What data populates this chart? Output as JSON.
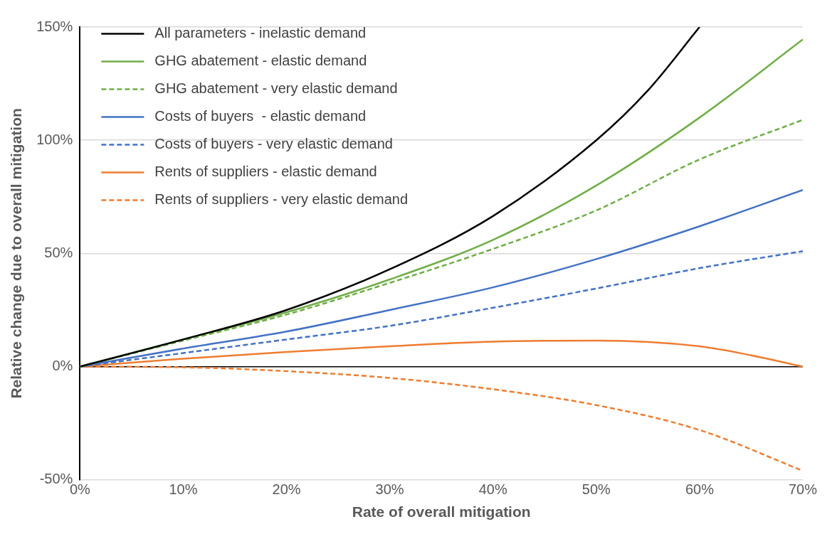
{
  "chart_data": {
    "type": "line",
    "xlabel": "Rate of overall mitigation",
    "ylabel": "Relative change due to overall mitigation",
    "xlim": [
      0,
      70
    ],
    "ylim": [
      -50,
      150
    ],
    "xticks": [
      {
        "value": 0,
        "label": "0%"
      },
      {
        "value": 10,
        "label": "10%"
      },
      {
        "value": 20,
        "label": "20%"
      },
      {
        "value": 30,
        "label": "30%"
      },
      {
        "value": 40,
        "label": "40%"
      },
      {
        "value": 50,
        "label": "50%"
      },
      {
        "value": 60,
        "label": "60%"
      },
      {
        "value": 70,
        "label": "70%"
      }
    ],
    "yticks": [
      {
        "value": -50,
        "label": "-50%"
      },
      {
        "value": 0,
        "label": "0%"
      },
      {
        "value": 50,
        "label": "50%"
      },
      {
        "value": 100,
        "label": "100%"
      },
      {
        "value": 150,
        "label": "150%"
      }
    ],
    "grid": "y",
    "legend": "top left",
    "series": [
      {
        "name": "All parameters - inelastic demand",
        "color": "#000000",
        "line_style": "solid",
        "x": [
          0,
          10,
          20,
          30,
          40,
          50,
          55,
          60
        ],
        "values": [
          0,
          12,
          25,
          43,
          66.5,
          100,
          122,
          150
        ]
      },
      {
        "name": "GHG abatement - elastic demand",
        "color": "#70ad47",
        "line_style": "solid",
        "x": [
          0,
          10,
          20,
          30,
          40,
          50,
          60,
          70
        ],
        "values": [
          0,
          12,
          24,
          38.5,
          56,
          80,
          110,
          144.5
        ]
      },
      {
        "name": "GHG abatement - very elastic demand",
        "color": "#70ad47",
        "line_style": "dashed",
        "x": [
          0,
          10,
          20,
          30,
          40,
          50,
          60,
          70
        ],
        "values": [
          0,
          11.5,
          23,
          37,
          52,
          69,
          91.5,
          109
        ]
      },
      {
        "name": "Costs of buyers  - elastic demand",
        "color": "#4472c4",
        "line_style": "solid",
        "x": [
          0,
          10,
          20,
          30,
          40,
          50,
          60,
          70
        ],
        "values": [
          0,
          8,
          15.5,
          25,
          35,
          47.5,
          62,
          78
        ]
      },
      {
        "name": "Costs of buyers - very elastic demand",
        "color": "#4472c4",
        "line_style": "dashed",
        "x": [
          0,
          10,
          20,
          30,
          40,
          50,
          60,
          70
        ],
        "values": [
          0,
          6,
          12,
          18,
          26,
          34.5,
          43.5,
          51
        ]
      },
      {
        "name": "Rents of suppliers - elastic demand",
        "color": "#ed7d31",
        "line_style": "solid",
        "x": [
          0,
          10,
          20,
          30,
          40,
          50,
          60,
          65,
          70
        ],
        "values": [
          0,
          3.5,
          6.5,
          9,
          11,
          11.5,
          9,
          5,
          0
        ]
      },
      {
        "name": "Rents of suppliers - very elastic demand",
        "color": "#ed7d31",
        "line_style": "dashed",
        "x": [
          0,
          10,
          20,
          30,
          40,
          50,
          60,
          70
        ],
        "values": [
          0,
          -0.3,
          -2,
          -5,
          -10,
          -17,
          -28,
          -46
        ]
      }
    ]
  }
}
